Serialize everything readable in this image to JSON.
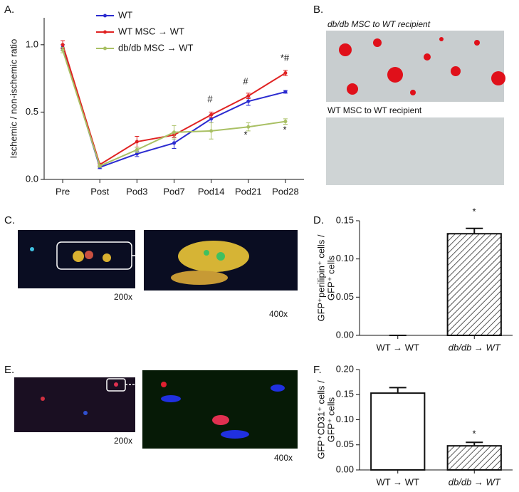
{
  "chart_data": [
    {
      "type": "line",
      "categories": [
        "Pre",
        "Post",
        "Pod3",
        "Pod7",
        "Pod14",
        "Pod21",
        "Pod28"
      ],
      "ylabel": "Ischemic / non-ischemic ratio",
      "ylim": [
        0,
        1.2
      ],
      "yticks": [
        {
          "value": 0,
          "label": "0.0"
        },
        {
          "value": 0.5,
          "label": "0.5"
        },
        {
          "value": 1,
          "label": "1.0"
        }
      ],
      "series": [
        {
          "name": "WT",
          "color": "#2b2bd0",
          "values": [
            0.98,
            0.09,
            0.19,
            0.27,
            0.45,
            0.58,
            0.65
          ],
          "errors": [
            0.02,
            0.01,
            0.02,
            0.04,
            0.03,
            0.03,
            0.01
          ]
        },
        {
          "name": "WT MSC → WT",
          "color": "#e02222",
          "values": [
            1.0,
            0.11,
            0.28,
            0.33,
            0.48,
            0.62,
            0.79
          ],
          "errors": [
            0.03,
            0.01,
            0.04,
            0.02,
            0.02,
            0.02,
            0.02
          ]
        },
        {
          "name": "db/db MSC → WT",
          "color": "#a9c064",
          "values": [
            0.96,
            0.1,
            0.22,
            0.35,
            0.36,
            0.39,
            0.43
          ],
          "errors": [
            0.02,
            0.01,
            0.02,
            0.05,
            0.06,
            0.03,
            0.02
          ]
        }
      ],
      "annotations": [
        "#",
        "#",
        "*#",
        "*",
        "*"
      ]
    },
    {
      "type": "bar",
      "categories": [
        "WT → WT",
        "db/db → WT"
      ],
      "values": [
        0,
        0.133
      ],
      "errors": [
        0,
        0.007
      ],
      "hatch": [
        false,
        true
      ],
      "ylabel": [
        "GFP⁺perilipin⁺ cells /",
        "GFP⁺ cells"
      ],
      "ylim": [
        0,
        0.15
      ],
      "yticks": [
        {
          "value": 0,
          "label": "0.00"
        },
        {
          "value": 0.05,
          "label": "0.05"
        },
        {
          "value": 0.1,
          "label": "0.10"
        },
        {
          "value": 0.15,
          "label": "0.15"
        }
      ],
      "annotations": [
        "*"
      ]
    },
    {
      "type": "bar",
      "categories": [
        "WT → WT",
        "db/db → WT"
      ],
      "values": [
        0.153,
        0.048
      ],
      "errors": [
        0.011,
        0.007
      ],
      "hatch": [
        false,
        true
      ],
      "ylabel": [
        "GFP⁺CD31⁺ cells /",
        "GFP⁺ cells"
      ],
      "ylim": [
        0,
        0.2
      ],
      "yticks": [
        {
          "value": 0,
          "label": "0.00"
        },
        {
          "value": 0.05,
          "label": "0.05"
        },
        {
          "value": 0.1,
          "label": "0.10"
        },
        {
          "value": 0.15,
          "label": "0.15"
        },
        {
          "value": 0.2,
          "label": "0.20"
        }
      ],
      "annotations": [
        "*"
      ]
    }
  ],
  "panel_labels": [
    "A.",
    "B.",
    "C.",
    "D.",
    "E.",
    "F."
  ],
  "image_captions": [
    "db/db MSC to WT recipient",
    "WT MSC to WT recipient",
    "200x",
    "400x",
    "200x",
    "400x"
  ]
}
